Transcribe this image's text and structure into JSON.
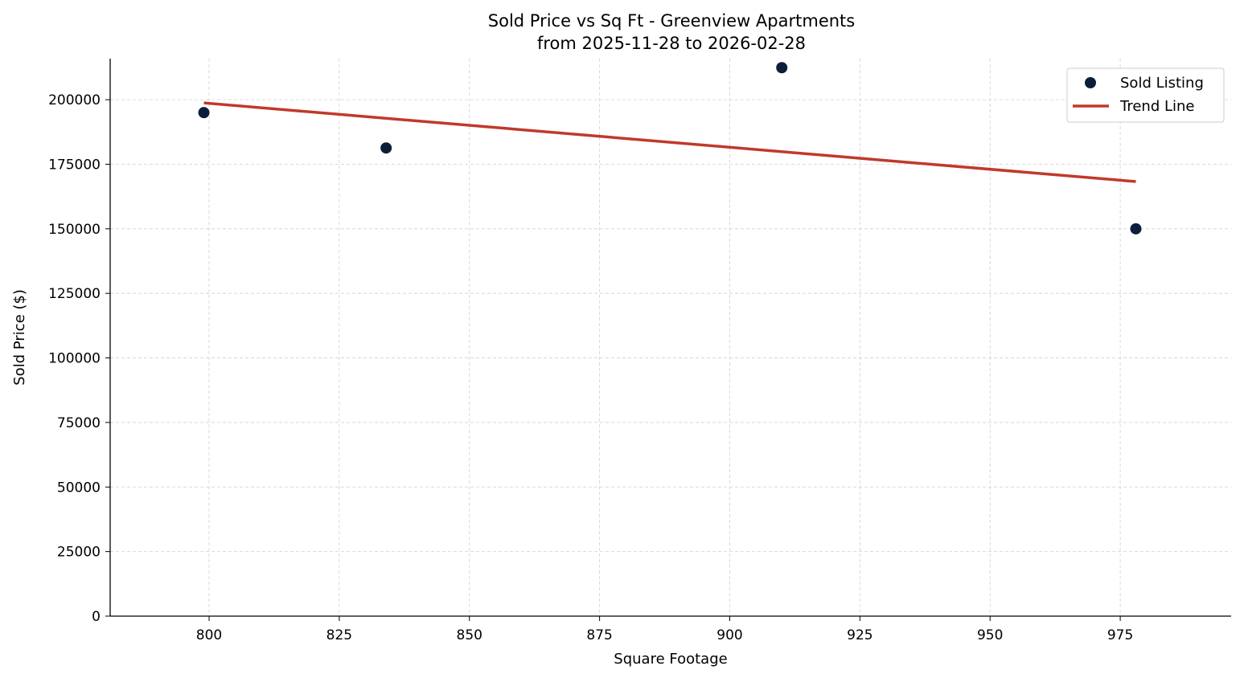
{
  "chart_data": {
    "type": "scatter",
    "title": "Sold Price vs Sq Ft - Greenview Apartments",
    "subtitle": "from 2025-11-28 to 2026-02-28",
    "xlabel": "Square Footage",
    "ylabel": "Sold Price ($)",
    "xlim": [
      781,
      996.3
    ],
    "ylim": [
      0,
      215900
    ],
    "xticks": [
      800,
      825,
      850,
      875,
      900,
      925,
      950,
      975
    ],
    "yticks": [
      0,
      25000,
      50000,
      75000,
      100000,
      125000,
      150000,
      175000,
      200000
    ],
    "grid": true,
    "legend_position": "top-right",
    "series": [
      {
        "name": "Sold Listing",
        "kind": "scatter",
        "color": "#0b1f3a",
        "points": [
          [
            799,
            195000
          ],
          [
            834,
            181300
          ],
          [
            910,
            212400
          ],
          [
            978,
            150000
          ]
        ]
      },
      {
        "name": "Trend Line",
        "kind": "line",
        "color": "#c0392b",
        "points": [
          [
            799,
            198750
          ],
          [
            978,
            168300
          ]
        ]
      }
    ]
  }
}
